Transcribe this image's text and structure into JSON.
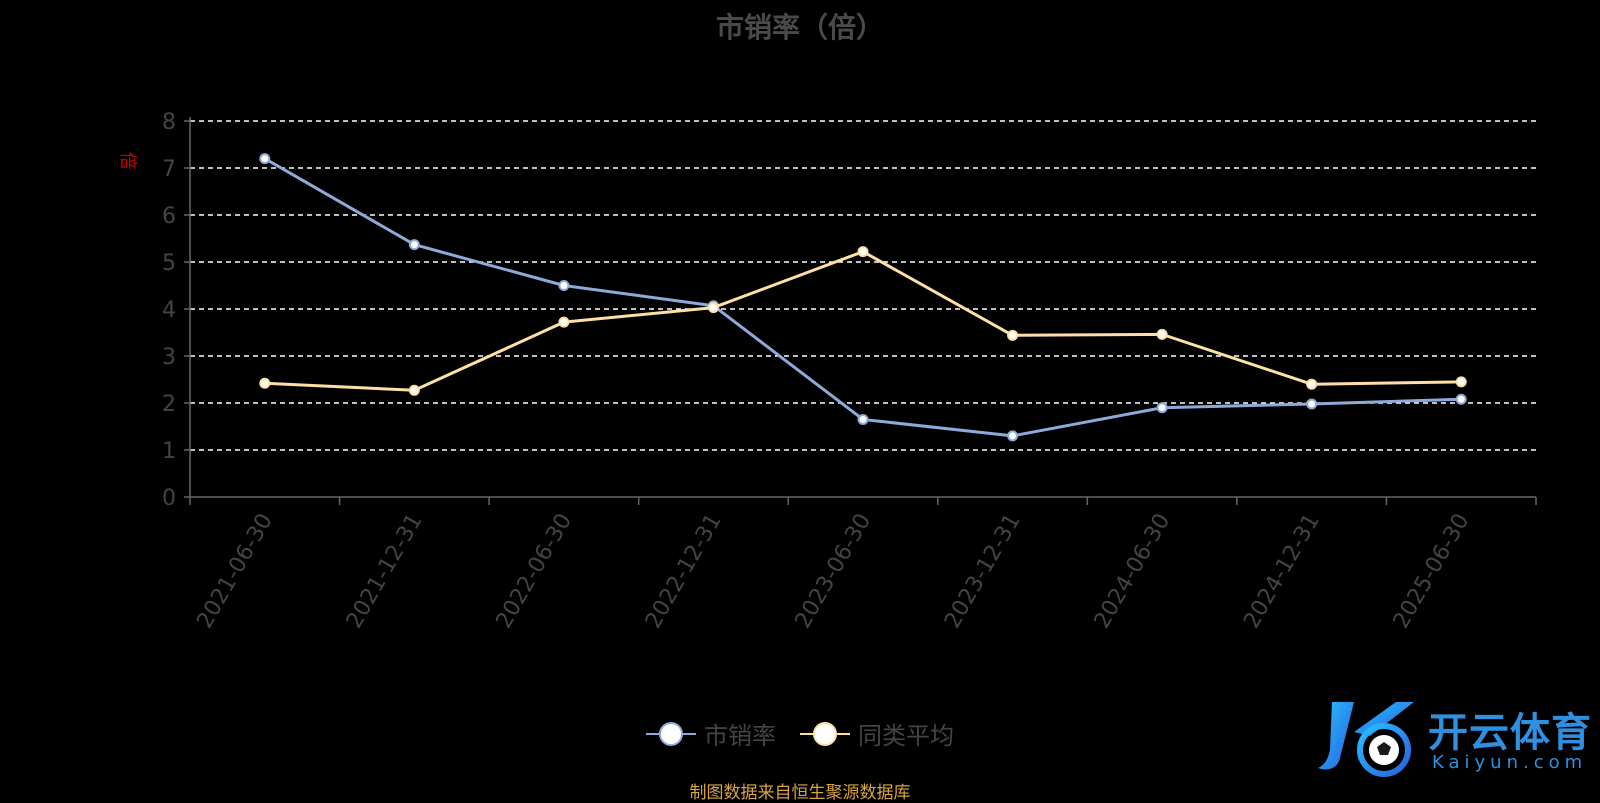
{
  "colors": {
    "background": "#000000",
    "series_ps": "#8eaadb",
    "series_avg": "#ffe0a3",
    "grid": "#ffffff",
    "axis": "#666666",
    "tick_text": "#444444",
    "unit_text": "#cc0000",
    "source_text": "#d9a441",
    "logo": "#2f8fe0"
  },
  "chart_data": {
    "type": "line",
    "title": "市销率（倍）",
    "ylabel": "倍",
    "ylim": [
      0,
      8
    ],
    "yticks": [
      "0",
      "1",
      "2",
      "3",
      "4",
      "5",
      "6",
      "7",
      "8"
    ],
    "grid": true,
    "legend_position": "bottom-center",
    "x": [
      "2021-06-30",
      "2021-12-31",
      "2022-06-30",
      "2022-12-31",
      "2023-06-30",
      "2023-12-31",
      "2024-06-30",
      "2024-12-31",
      "2025-06-30"
    ],
    "series": [
      {
        "name": "市销率",
        "color": "#8eaadb",
        "values": [
          7.2,
          5.37,
          4.5,
          4.07,
          1.65,
          1.3,
          1.9,
          1.98,
          2.08
        ]
      },
      {
        "name": "同类平均",
        "color": "#ffe0a3",
        "values": [
          2.42,
          2.27,
          3.72,
          4.03,
          5.22,
          3.44,
          3.46,
          2.4,
          2.45
        ]
      }
    ]
  },
  "legend": {
    "items": [
      "市销率",
      "同类平均"
    ]
  },
  "source": "制图数据来自恒生聚源数据库",
  "logo": {
    "cn": "开云体育",
    "en": "Kaiyun.com"
  }
}
